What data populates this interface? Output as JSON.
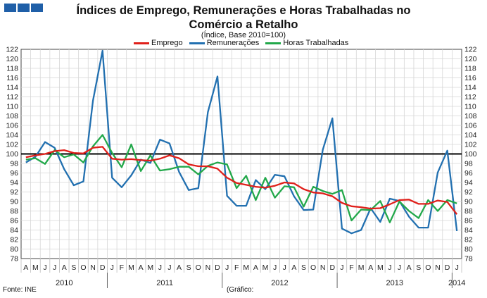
{
  "header": {
    "title_line1": "Índices de Emprego, Remunerações e Horas Trabalhadas no",
    "title_line2": "Comércio a Retalho",
    "subtitle": "(Índice, Base 2010=100)"
  },
  "footer": {
    "source": "Fonte: INE",
    "note": "(Gráfico:"
  },
  "colors": {
    "emprego": "#e0201b",
    "remuneracoes": "#2270b0",
    "horas": "#22a84a",
    "baseline": "#000000",
    "logo": "#1f5fa8"
  },
  "chart_data": {
    "type": "line",
    "title": "Índices de Emprego, Remunerações e Horas Trabalhadas no Comércio a Retalho",
    "subtitle": "(Índice, Base 2010=100)",
    "ylim": [
      78,
      122
    ],
    "ytick_step": 2,
    "grid": true,
    "legend_position": "top-center",
    "reference_line": 100,
    "categories": [
      "A",
      "M",
      "J",
      "J",
      "A",
      "S",
      "O",
      "N",
      "D",
      "J",
      "F",
      "M",
      "A",
      "M",
      "J",
      "J",
      "A",
      "S",
      "O",
      "N",
      "D",
      "J",
      "F",
      "M",
      "A",
      "M",
      "J",
      "J",
      "A",
      "S",
      "O",
      "N",
      "D",
      "J",
      "F",
      "M",
      "A",
      "M",
      "J",
      "J",
      "A",
      "S",
      "O",
      "N",
      "D",
      "J"
    ],
    "years": [
      {
        "label": "2010",
        "start": 0,
        "end": 8
      },
      {
        "label": "2011",
        "start": 9,
        "end": 20
      },
      {
        "label": "2012",
        "start": 21,
        "end": 32
      },
      {
        "label": "2013",
        "start": 33,
        "end": 44
      },
      {
        "label": "2014",
        "start": 45,
        "end": 45
      }
    ],
    "series": [
      {
        "name": "Emprego",
        "color": "#e0201b",
        "values": [
          99.3,
          99.7,
          100.0,
          100.6,
          100.8,
          100.2,
          100.1,
          101.3,
          101.5,
          99.0,
          98.8,
          98.9,
          98.7,
          98.6,
          99.0,
          99.7,
          99.1,
          97.8,
          97.4,
          97.4,
          96.9,
          95.0,
          93.9,
          93.5,
          93.1,
          92.9,
          93.3,
          94.0,
          93.8,
          92.6,
          91.9,
          91.7,
          91.1,
          89.7,
          89.0,
          88.8,
          88.5,
          88.6,
          89.4,
          90.3,
          90.4,
          89.5,
          89.5,
          90.2,
          89.9,
          87.3
        ]
      },
      {
        "name": "Remunerações",
        "color": "#2270b0",
        "values": [
          98.2,
          99.4,
          102.5,
          101.3,
          96.8,
          93.4,
          94.2,
          111.2,
          121.7,
          95.0,
          93.0,
          95.5,
          98.8,
          98.1,
          103.0,
          102.2,
          96.2,
          92.4,
          92.8,
          108.8,
          116.3,
          91.2,
          89.1,
          89.1,
          94.5,
          92.6,
          95.6,
          95.3,
          91.1,
          88.2,
          88.3,
          100.9,
          107.5,
          84.3,
          83.3,
          84.0,
          88.6,
          85.7,
          90.6,
          90.1,
          86.8,
          84.5,
          84.5,
          96.1,
          100.7,
          83.8
        ]
      },
      {
        "name": "Horas Trabalhadas",
        "color": "#22a84a",
        "values": [
          98.8,
          99.1,
          97.9,
          100.8,
          99.3,
          99.9,
          98.2,
          101.6,
          104.0,
          100.2,
          97.2,
          102.0,
          96.4,
          99.7,
          96.5,
          96.8,
          97.3,
          97.3,
          95.7,
          97.5,
          98.2,
          97.8,
          92.8,
          95.4,
          90.3,
          95.0,
          90.8,
          93.2,
          93.0,
          88.9,
          93.1,
          92.2,
          91.6,
          92.4,
          86.0,
          88.3,
          88.2,
          90.1,
          85.6,
          90.0,
          88.0,
          86.5,
          90.3,
          88.0,
          90.3,
          89.6
        ]
      }
    ]
  }
}
